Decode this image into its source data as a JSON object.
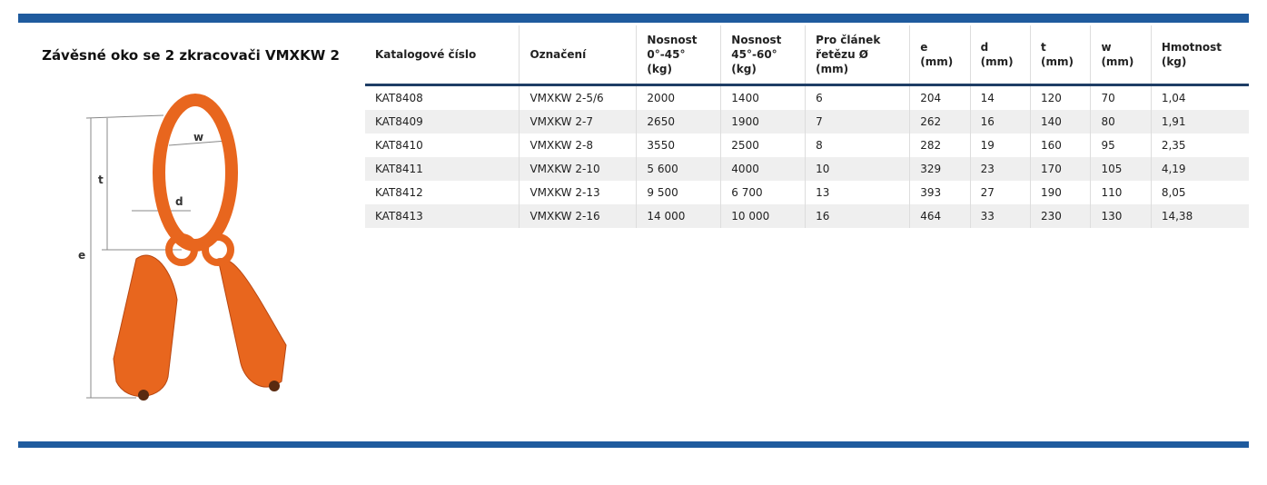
{
  "header": {
    "title": "Závěsné oko se 2 zkracovači VMXKW 2"
  },
  "figure": {
    "labels": {
      "w": "w",
      "t": "t",
      "d": "d",
      "e": "e"
    }
  },
  "table": {
    "header": [
      [
        "Katalogové číslo"
      ],
      [
        "Označení"
      ],
      [
        "Nosnost",
        "0°-45°",
        "(kg)"
      ],
      [
        "Nosnost",
        "45°-60°",
        "(kg)"
      ],
      [
        "Pro článek",
        "řetězu Ø",
        "(mm)"
      ],
      [
        "e",
        "(mm)"
      ],
      [
        "d",
        "(mm)"
      ],
      [
        "t",
        "(mm)"
      ],
      [
        "w",
        "(mm)"
      ],
      [
        "Hmotnost",
        "(kg)"
      ]
    ],
    "rows": [
      [
        "KAT8408",
        "VMXKW 2-5/6",
        "2000",
        "1400",
        "6",
        "204",
        "14",
        "120",
        "70",
        "1,04"
      ],
      [
        "KAT8409",
        "VMXKW 2-7",
        "2650",
        "1900",
        "7",
        "262",
        "16",
        "140",
        "80",
        "1,91"
      ],
      [
        "KAT8410",
        "VMXKW 2-8",
        "3550",
        "2500",
        "8",
        "282",
        "19",
        "160",
        "95",
        "2,35"
      ],
      [
        "KAT8411",
        "VMXKW 2-10",
        "5 600",
        "4000",
        "10",
        "329",
        "23",
        "170",
        "105",
        "4,19"
      ],
      [
        "KAT8412",
        "VMXKW 2-13",
        "9 500",
        "6 700",
        "13",
        "393",
        "27",
        "190",
        "110",
        "8,05"
      ],
      [
        "KAT8413",
        "VMXKW 2-16",
        "14 000",
        "10 000",
        "16",
        "464",
        "33",
        "230",
        "130",
        "14,38"
      ]
    ]
  }
}
